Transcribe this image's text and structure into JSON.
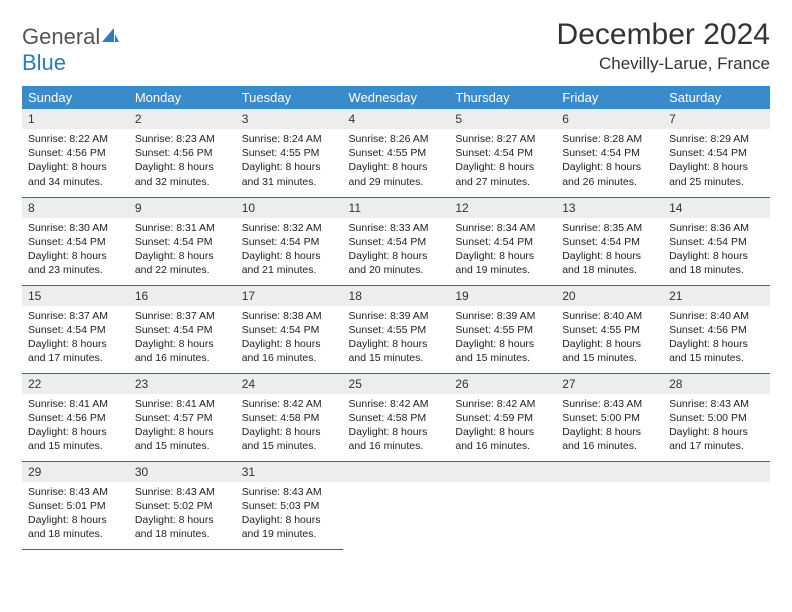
{
  "brand": {
    "part1": "General",
    "part2": "Blue"
  },
  "title": "December 2024",
  "location": "Chevilly-Larue, France",
  "colors": {
    "header_bg": "#3a8bc9",
    "header_text": "#ffffff",
    "daynum_bg": "#eceded",
    "row_border": "#2b6ca3",
    "logo_blue": "#2b7bbf"
  },
  "weekdays": [
    "Sunday",
    "Monday",
    "Tuesday",
    "Wednesday",
    "Thursday",
    "Friday",
    "Saturday"
  ],
  "days": [
    {
      "n": "1",
      "sr": "8:22 AM",
      "ss": "4:56 PM",
      "dl": "8 hours and 34 minutes."
    },
    {
      "n": "2",
      "sr": "8:23 AM",
      "ss": "4:56 PM",
      "dl": "8 hours and 32 minutes."
    },
    {
      "n": "3",
      "sr": "8:24 AM",
      "ss": "4:55 PM",
      "dl": "8 hours and 31 minutes."
    },
    {
      "n": "4",
      "sr": "8:26 AM",
      "ss": "4:55 PM",
      "dl": "8 hours and 29 minutes."
    },
    {
      "n": "5",
      "sr": "8:27 AM",
      "ss": "4:54 PM",
      "dl": "8 hours and 27 minutes."
    },
    {
      "n": "6",
      "sr": "8:28 AM",
      "ss": "4:54 PM",
      "dl": "8 hours and 26 minutes."
    },
    {
      "n": "7",
      "sr": "8:29 AM",
      "ss": "4:54 PM",
      "dl": "8 hours and 25 minutes."
    },
    {
      "n": "8",
      "sr": "8:30 AM",
      "ss": "4:54 PM",
      "dl": "8 hours and 23 minutes."
    },
    {
      "n": "9",
      "sr": "8:31 AM",
      "ss": "4:54 PM",
      "dl": "8 hours and 22 minutes."
    },
    {
      "n": "10",
      "sr": "8:32 AM",
      "ss": "4:54 PM",
      "dl": "8 hours and 21 minutes."
    },
    {
      "n": "11",
      "sr": "8:33 AM",
      "ss": "4:54 PM",
      "dl": "8 hours and 20 minutes."
    },
    {
      "n": "12",
      "sr": "8:34 AM",
      "ss": "4:54 PM",
      "dl": "8 hours and 19 minutes."
    },
    {
      "n": "13",
      "sr": "8:35 AM",
      "ss": "4:54 PM",
      "dl": "8 hours and 18 minutes."
    },
    {
      "n": "14",
      "sr": "8:36 AM",
      "ss": "4:54 PM",
      "dl": "8 hours and 18 minutes."
    },
    {
      "n": "15",
      "sr": "8:37 AM",
      "ss": "4:54 PM",
      "dl": "8 hours and 17 minutes."
    },
    {
      "n": "16",
      "sr": "8:37 AM",
      "ss": "4:54 PM",
      "dl": "8 hours and 16 minutes."
    },
    {
      "n": "17",
      "sr": "8:38 AM",
      "ss": "4:54 PM",
      "dl": "8 hours and 16 minutes."
    },
    {
      "n": "18",
      "sr": "8:39 AM",
      "ss": "4:55 PM",
      "dl": "8 hours and 15 minutes."
    },
    {
      "n": "19",
      "sr": "8:39 AM",
      "ss": "4:55 PM",
      "dl": "8 hours and 15 minutes."
    },
    {
      "n": "20",
      "sr": "8:40 AM",
      "ss": "4:55 PM",
      "dl": "8 hours and 15 minutes."
    },
    {
      "n": "21",
      "sr": "8:40 AM",
      "ss": "4:56 PM",
      "dl": "8 hours and 15 minutes."
    },
    {
      "n": "22",
      "sr": "8:41 AM",
      "ss": "4:56 PM",
      "dl": "8 hours and 15 minutes."
    },
    {
      "n": "23",
      "sr": "8:41 AM",
      "ss": "4:57 PM",
      "dl": "8 hours and 15 minutes."
    },
    {
      "n": "24",
      "sr": "8:42 AM",
      "ss": "4:58 PM",
      "dl": "8 hours and 15 minutes."
    },
    {
      "n": "25",
      "sr": "8:42 AM",
      "ss": "4:58 PM",
      "dl": "8 hours and 16 minutes."
    },
    {
      "n": "26",
      "sr": "8:42 AM",
      "ss": "4:59 PM",
      "dl": "8 hours and 16 minutes."
    },
    {
      "n": "27",
      "sr": "8:43 AM",
      "ss": "5:00 PM",
      "dl": "8 hours and 16 minutes."
    },
    {
      "n": "28",
      "sr": "8:43 AM",
      "ss": "5:00 PM",
      "dl": "8 hours and 17 minutes."
    },
    {
      "n": "29",
      "sr": "8:43 AM",
      "ss": "5:01 PM",
      "dl": "8 hours and 18 minutes."
    },
    {
      "n": "30",
      "sr": "8:43 AM",
      "ss": "5:02 PM",
      "dl": "8 hours and 18 minutes."
    },
    {
      "n": "31",
      "sr": "8:43 AM",
      "ss": "5:03 PM",
      "dl": "8 hours and 19 minutes."
    }
  ],
  "labels": {
    "sunrise": "Sunrise:",
    "sunset": "Sunset:",
    "daylight": "Daylight:"
  }
}
